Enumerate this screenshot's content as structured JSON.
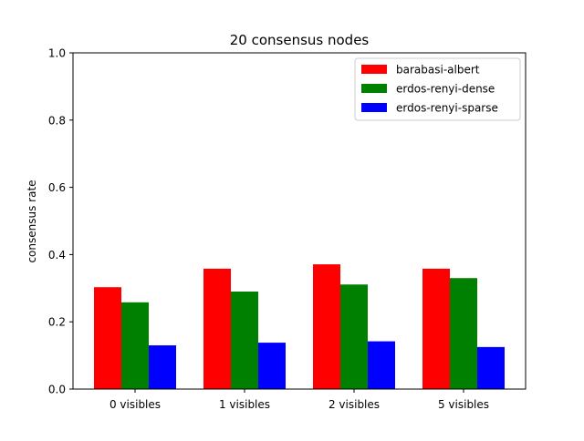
{
  "chart_data": {
    "type": "bar",
    "title": "20 consensus nodes",
    "xlabel": "",
    "ylabel": "consensus rate",
    "categories": [
      "0 visibles",
      "1 visibles",
      "2 visibles",
      "5 visibles"
    ],
    "ylim": [
      0,
      1.0
    ],
    "yticks": [
      "0.0",
      "0.2",
      "0.4",
      "0.6",
      "0.8",
      "1.0"
    ],
    "grid": false,
    "legend_position": "top-right",
    "series": [
      {
        "name": "barabasi-albert",
        "color": "#ff0000",
        "values": [
          0.303,
          0.358,
          0.371,
          0.358
        ]
      },
      {
        "name": "erdos-renyi-dense",
        "color": "#008000",
        "values": [
          0.258,
          0.29,
          0.311,
          0.33
        ]
      },
      {
        "name": "erdos-renyi-sparse",
        "color": "#0000ff",
        "values": [
          0.13,
          0.138,
          0.142,
          0.125
        ]
      }
    ]
  }
}
